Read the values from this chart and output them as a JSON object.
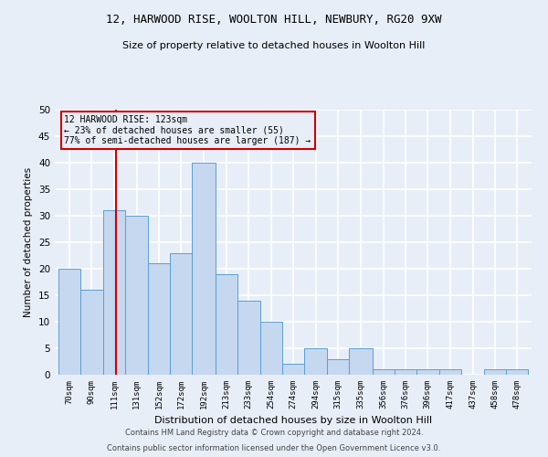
{
  "title1": "12, HARWOOD RISE, WOOLTON HILL, NEWBURY, RG20 9XW",
  "title2": "Size of property relative to detached houses in Woolton Hill",
  "xlabel": "Distribution of detached houses by size in Woolton Hill",
  "ylabel": "Number of detached properties",
  "footer1": "Contains HM Land Registry data © Crown copyright and database right 2024.",
  "footer2": "Contains public sector information licensed under the Open Government Licence v3.0.",
  "annotation_line1": "12 HARWOOD RISE: 123sqm",
  "annotation_line2": "← 23% of detached houses are smaller (55)",
  "annotation_line3": "77% of semi-detached houses are larger (187) →",
  "property_size": 123,
  "bin_labels": [
    "70sqm",
    "90sqm",
    "111sqm",
    "131sqm",
    "152sqm",
    "172sqm",
    "192sqm",
    "213sqm",
    "233sqm",
    "254sqm",
    "274sqm",
    "294sqm",
    "315sqm",
    "335sqm",
    "356sqm",
    "376sqm",
    "396sqm",
    "417sqm",
    "437sqm",
    "458sqm",
    "478sqm"
  ],
  "bin_starts": [
    70,
    90,
    111,
    131,
    152,
    172,
    192,
    213,
    233,
    254,
    274,
    294,
    315,
    335,
    356,
    376,
    396,
    417,
    437,
    458,
    478
  ],
  "bar_heights": [
    20,
    16,
    31,
    30,
    21,
    23,
    40,
    19,
    14,
    10,
    2,
    5,
    3,
    5,
    1,
    1,
    1,
    1,
    0,
    1,
    1
  ],
  "bar_color": "#c5d8f0",
  "bar_edge_color": "#5a9fd4",
  "vline_color": "#cc0000",
  "annotation_box_color": "#cc0000",
  "bg_color": "#e8eef8",
  "grid_color": "#ffffff",
  "ylim": [
    0,
    50
  ],
  "yticks": [
    0,
    5,
    10,
    15,
    20,
    25,
    30,
    35,
    40,
    45,
    50
  ]
}
